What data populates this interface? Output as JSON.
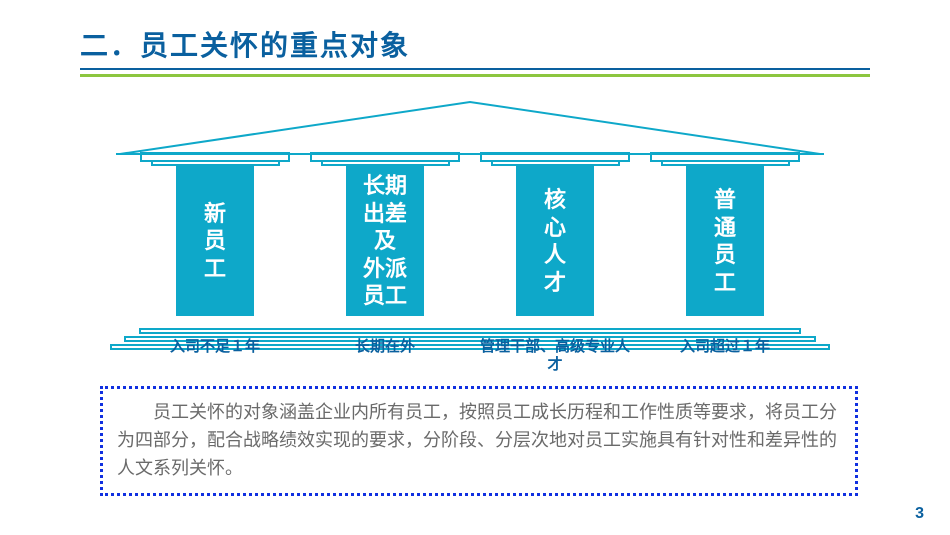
{
  "colors": {
    "title": "#0a609f",
    "title_underline": "#0a609f",
    "green_rule": "#8cc63f",
    "pillar_fill": "#0ea8c9",
    "outline": "#0ea8c9",
    "sub_label": "#0a609f",
    "desc_border": "#1030e0",
    "desc_text": "#6a6a6a",
    "page_num": "#0a609f",
    "white": "#ffffff"
  },
  "title": "二．员工关怀的重点对象",
  "pillars": [
    {
      "label": "新\n员\n工",
      "sub": "入司不足１年"
    },
    {
      "label": "长期\n出差\n及\n外派\n员工",
      "sub": "长期在外"
    },
    {
      "label": "核\n心\n人\n才",
      "sub": "管理干部、高级专业人才"
    },
    {
      "label": "普\n通\n员\n工",
      "sub": "入司超过１年"
    }
  ],
  "description": "员工关怀的对象涵盖企业内所有员工，按照员工成长历程和工作性质等要求，将员工分为四部分，配合战略绩效实现的要求，分阶段、分层次地对员工实施具有针对性和差异性的人文系列关怀。",
  "page_number": "3",
  "roof": {
    "stroke_width": 2
  },
  "base_widths_pct": [
    92,
    96,
    100
  ]
}
